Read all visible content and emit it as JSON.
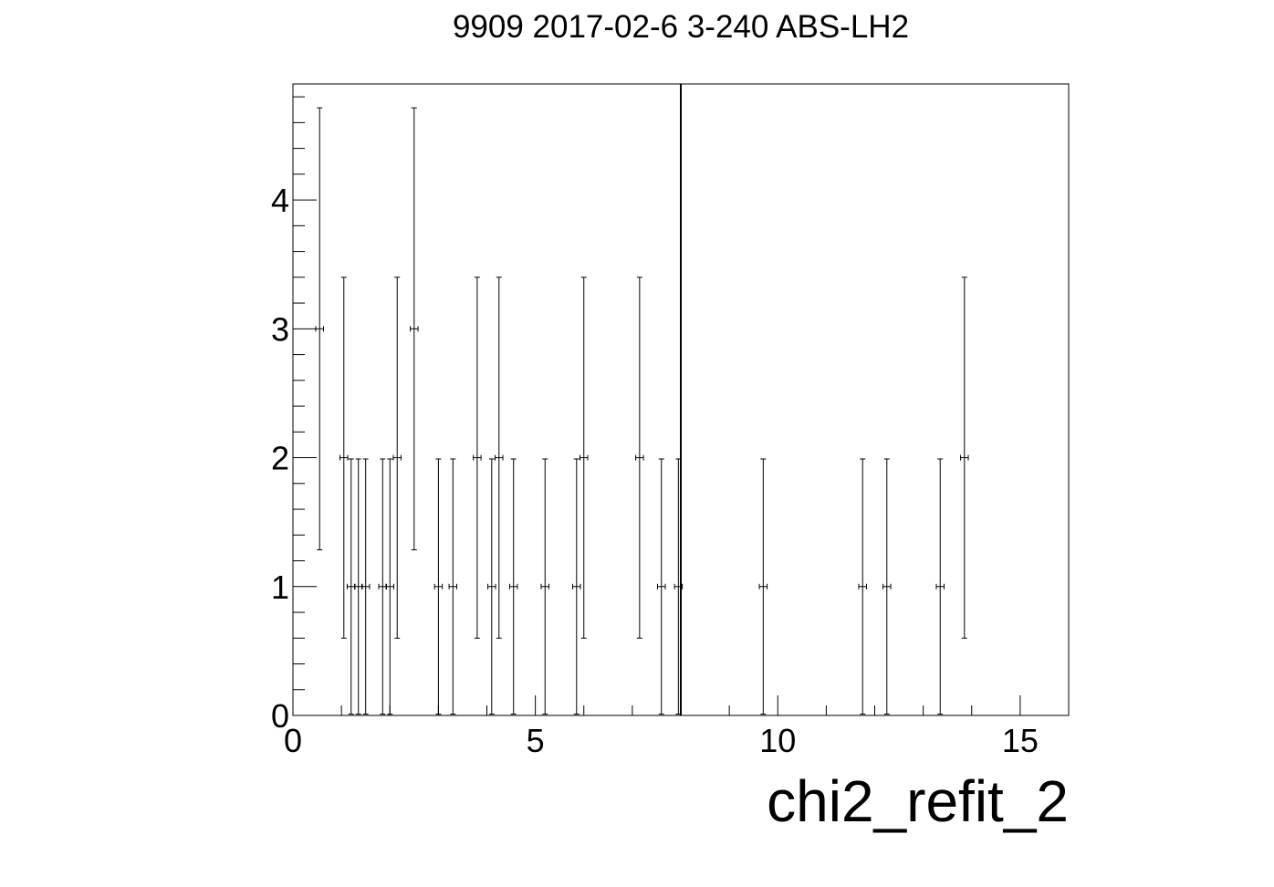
{
  "chart_data": {
    "type": "scatter",
    "title": "9909 2017-02-6 3-240 ABS-LH2",
    "xlabel": "chi2_refit_2",
    "ylabel": "",
    "xlim": [
      0,
      16
    ],
    "ylim": [
      0,
      4.9
    ],
    "x_ticks": [
      0,
      5,
      10,
      15
    ],
    "y_ticks": [
      0,
      1,
      2,
      3,
      4
    ],
    "x_tick_labels": [
      "0",
      "5",
      "10",
      "15"
    ],
    "y_tick_labels": [
      "0",
      "1",
      "2",
      "3",
      "4"
    ],
    "vertical_line_x": 8.0,
    "grid": false,
    "series": [
      {
        "points": [
          {
            "x": 0.55,
            "y": 3
          },
          {
            "x": 1.05,
            "y": 2
          },
          {
            "x": 1.2,
            "y": 1
          },
          {
            "x": 1.35,
            "y": 1
          },
          {
            "x": 1.5,
            "y": 1
          },
          {
            "x": 1.85,
            "y": 1
          },
          {
            "x": 2.0,
            "y": 1
          },
          {
            "x": 2.15,
            "y": 2
          },
          {
            "x": 2.5,
            "y": 3
          },
          {
            "x": 3.0,
            "y": 1
          },
          {
            "x": 3.3,
            "y": 1
          },
          {
            "x": 3.8,
            "y": 2
          },
          {
            "x": 4.1,
            "y": 1
          },
          {
            "x": 4.25,
            "y": 2
          },
          {
            "x": 4.55,
            "y": 1
          },
          {
            "x": 5.2,
            "y": 1
          },
          {
            "x": 5.85,
            "y": 1
          },
          {
            "x": 6.0,
            "y": 2
          },
          {
            "x": 7.15,
            "y": 2
          },
          {
            "x": 7.6,
            "y": 1
          },
          {
            "x": 7.95,
            "y": 1
          },
          {
            "x": 9.7,
            "y": 1
          },
          {
            "x": 11.75,
            "y": 1
          },
          {
            "x": 12.25,
            "y": 1
          },
          {
            "x": 13.35,
            "y": 1
          },
          {
            "x": 13.85,
            "y": 2
          }
        ]
      }
    ]
  }
}
